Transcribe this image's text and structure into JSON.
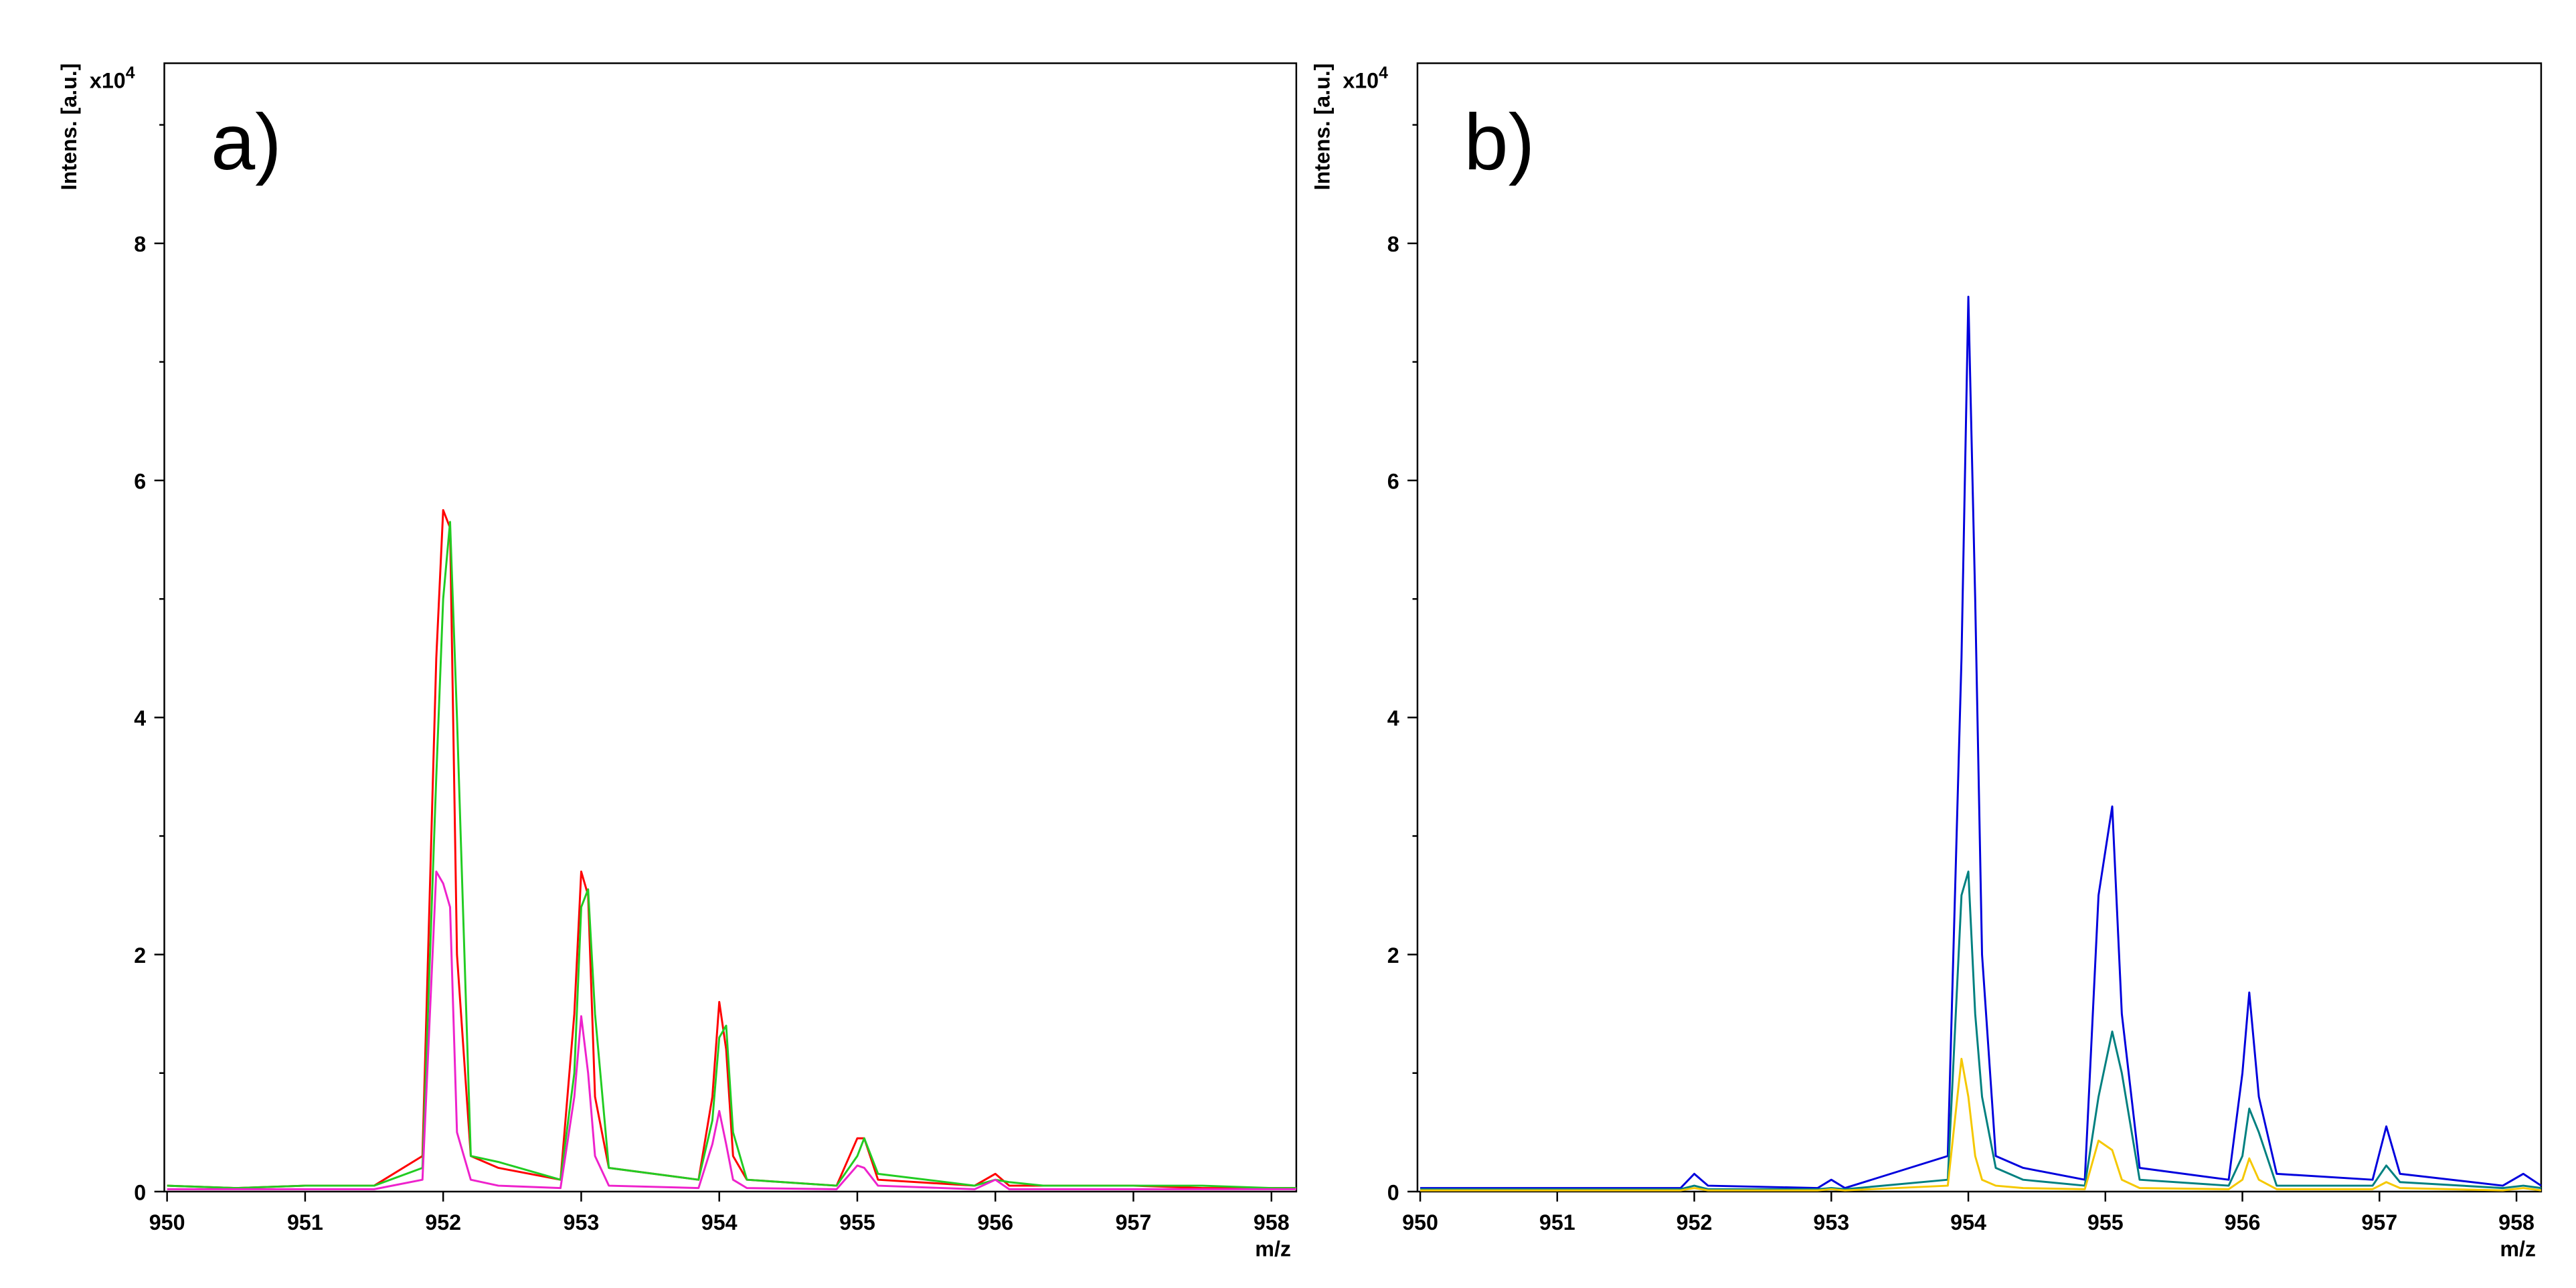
{
  "chart_data": [
    {
      "type": "line",
      "panel_label": "a)",
      "ylabel": "Intens. [a.u.]",
      "xlabel": "m/z",
      "yscale": {
        "base": "x10",
        "exponent": "4"
      },
      "xlim": [
        949.98,
        958.18
      ],
      "xticks": [
        950,
        951,
        952,
        953,
        954,
        955,
        956,
        957,
        958
      ],
      "ylim": [
        0,
        9.52
      ],
      "yticks": [
        0,
        2,
        4,
        6,
        8
      ],
      "yminor": [
        1,
        3,
        5,
        7,
        9
      ],
      "x": [
        950,
        950.5,
        951,
        951.5,
        951.85,
        951.95,
        952.0,
        952.05,
        952.1,
        952.2,
        952.4,
        952.85,
        952.95,
        953.0,
        953.05,
        953.1,
        953.2,
        953.85,
        953.95,
        954.0,
        954.05,
        954.1,
        954.2,
        954.85,
        955.0,
        955.05,
        955.15,
        955.85,
        956.0,
        956.1,
        956.35,
        956.5,
        957,
        957.5,
        958,
        958.18
      ],
      "series": [
        {
          "color": "#ff0000",
          "values": [
            0.05,
            0.03,
            0.05,
            0.05,
            0.3,
            4.5,
            5.75,
            5.6,
            2.0,
            0.3,
            0.2,
            0.1,
            1.5,
            2.7,
            2.5,
            0.8,
            0.2,
            0.1,
            0.8,
            1.6,
            1.2,
            0.3,
            0.1,
            0.05,
            0.45,
            0.45,
            0.1,
            0.05,
            0.15,
            0.05,
            0.05,
            0.05,
            0.05,
            0.03,
            0.03,
            0.03
          ]
        },
        {
          "color": "#22cc22",
          "values": [
            0.05,
            0.03,
            0.05,
            0.05,
            0.2,
            3.5,
            5.0,
            5.65,
            4.0,
            0.3,
            0.25,
            0.1,
            1.0,
            2.4,
            2.55,
            1.5,
            0.2,
            0.1,
            0.6,
            1.3,
            1.4,
            0.5,
            0.1,
            0.05,
            0.3,
            0.45,
            0.15,
            0.05,
            0.1,
            0.08,
            0.05,
            0.05,
            0.05,
            0.05,
            0.03,
            0.03
          ]
        },
        {
          "color": "#ee22cc",
          "values": [
            0.02,
            0.02,
            0.02,
            0.02,
            0.1,
            2.7,
            2.6,
            2.4,
            0.5,
            0.1,
            0.05,
            0.03,
            0.8,
            1.48,
            1.0,
            0.3,
            0.05,
            0.03,
            0.4,
            0.68,
            0.4,
            0.1,
            0.03,
            0.02,
            0.22,
            0.2,
            0.05,
            0.02,
            0.1,
            0.02,
            0.02,
            0.02,
            0.02,
            0.02,
            0.02,
            0.02
          ]
        }
      ]
    },
    {
      "type": "line",
      "panel_label": "b)",
      "ylabel": "Intens. [a.u.]",
      "xlabel": "m/z",
      "yscale": {
        "base": "x10",
        "exponent": "4"
      },
      "xlim": [
        949.98,
        958.18
      ],
      "xticks": [
        950,
        951,
        952,
        953,
        954,
        955,
        956,
        957,
        958
      ],
      "ylim": [
        0,
        9.52
      ],
      "yticks": [
        0,
        2,
        4,
        6,
        8
      ],
      "yminor": [
        1,
        3,
        5,
        7,
        9
      ],
      "x": [
        950,
        951,
        951.9,
        952.0,
        952.1,
        952.9,
        953.0,
        953.1,
        953.85,
        953.95,
        954.0,
        954.05,
        954.1,
        954.2,
        954.4,
        954.85,
        954.95,
        955.05,
        955.12,
        955.25,
        955.9,
        956.0,
        956.05,
        956.12,
        956.25,
        956.95,
        957.05,
        957.15,
        957.9,
        958.05,
        958.18
      ],
      "series": [
        {
          "color": "#0000dd",
          "values": [
            0.03,
            0.03,
            0.03,
            0.15,
            0.05,
            0.03,
            0.1,
            0.03,
            0.3,
            4.5,
            7.55,
            5.0,
            2.0,
            0.3,
            0.2,
            0.1,
            2.5,
            3.25,
            1.5,
            0.2,
            0.1,
            1.0,
            1.68,
            0.8,
            0.15,
            0.1,
            0.55,
            0.15,
            0.05,
            0.15,
            0.05
          ]
        },
        {
          "color": "#008080",
          "values": [
            0.02,
            0.02,
            0.02,
            0.05,
            0.02,
            0.02,
            0.03,
            0.02,
            0.1,
            2.5,
            2.7,
            1.5,
            0.8,
            0.2,
            0.1,
            0.05,
            0.8,
            1.35,
            1.0,
            0.1,
            0.05,
            0.3,
            0.7,
            0.5,
            0.05,
            0.05,
            0.22,
            0.08,
            0.03,
            0.05,
            0.03
          ]
        },
        {
          "color": "#f5c800",
          "values": [
            0.01,
            0.01,
            0.01,
            0.03,
            0.01,
            0.01,
            0.02,
            0.01,
            0.05,
            1.12,
            0.8,
            0.3,
            0.1,
            0.05,
            0.03,
            0.02,
            0.43,
            0.35,
            0.1,
            0.03,
            0.02,
            0.1,
            0.28,
            0.1,
            0.02,
            0.02,
            0.08,
            0.03,
            0.01,
            0.03,
            0.01
          ]
        }
      ]
    }
  ]
}
